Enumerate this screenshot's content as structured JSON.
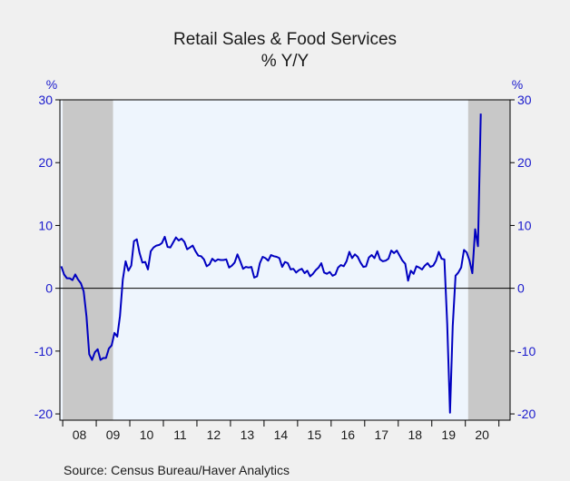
{
  "chart_data": {
    "type": "line",
    "title": "Retail Sales & Food Services",
    "subtitle": "% Y/Y",
    "ylabel_left": "%",
    "ylabel_right": "%",
    "ylim": [
      -21,
      30
    ],
    "yticks": [
      30,
      20,
      10,
      0,
      -10,
      -20
    ],
    "xlim": [
      "2007-12",
      "2021-05"
    ],
    "x_tick_labels": [
      "08",
      "09",
      "10",
      "11",
      "12",
      "13",
      "14",
      "15",
      "16",
      "17",
      "18",
      "19",
      "20"
    ],
    "recessions": [
      {
        "start": "2008-01",
        "end": "2009-06"
      },
      {
        "start": "2020-02",
        "end": "2021-05"
      }
    ],
    "source": "Source:  Census Bureau/Haver Analytics",
    "colors": {
      "line": "#0000c0",
      "recession_shade": "#c8c8c8",
      "plot_background": "#eef5fd",
      "axis_labels": "#1a1acc"
    },
    "series": [
      {
        "start": "2007-12",
        "frequency": "monthly",
        "values": [
          3.5,
          2.2,
          1.6,
          1.6,
          1.3,
          2.2,
          1.4,
          0.8,
          -0.5,
          -4.5,
          -10.5,
          -11.4,
          -10.2,
          -9.7,
          -11.4,
          -11.1,
          -11.1,
          -9.6,
          -9.1,
          -7.1,
          -7.7,
          -4.4,
          1.4,
          4.3,
          2.8,
          3.6,
          7.5,
          7.8,
          5.6,
          4.1,
          4.2,
          3.0,
          5.9,
          6.5,
          6.8,
          6.9,
          7.2,
          8.2,
          6.6,
          6.5,
          7.3,
          8.1,
          7.6,
          7.9,
          7.4,
          6.2,
          6.5,
          6.8,
          5.9,
          5.2,
          5.1,
          4.6,
          3.5,
          3.8,
          4.7,
          4.3,
          4.6,
          4.5,
          4.5,
          4.6,
          3.3,
          3.6,
          4.1,
          5.4,
          4.3,
          3.1,
          3.4,
          3.3,
          3.4,
          1.7,
          1.9,
          4.0,
          5.0,
          4.8,
          4.4,
          5.3,
          5.1,
          5.0,
          4.8,
          3.4,
          4.2,
          4.0,
          3.0,
          3.1,
          2.5,
          2.9,
          3.1,
          2.4,
          2.8,
          1.9,
          2.3,
          2.9,
          3.3,
          4.0,
          2.5,
          2.3,
          2.6,
          2.0,
          2.2,
          3.3,
          3.7,
          3.5,
          4.3,
          5.8,
          4.8,
          5.4,
          5.0,
          4.1,
          3.4,
          3.5,
          4.9,
          5.3,
          4.8,
          5.9,
          4.6,
          4.3,
          4.4,
          4.7,
          6.0,
          5.6,
          6.0,
          5.2,
          4.4,
          3.9,
          1.2,
          2.8,
          2.3,
          3.5,
          3.3,
          3.0,
          3.6,
          4.0,
          3.4,
          3.6,
          4.4,
          5.8,
          4.7,
          4.6,
          -5.6,
          -19.8,
          -6.0,
          2.0,
          2.5,
          3.3,
          6.1,
          5.7,
          4.4,
          2.4,
          9.4,
          6.7,
          27.8
        ]
      }
    ]
  }
}
